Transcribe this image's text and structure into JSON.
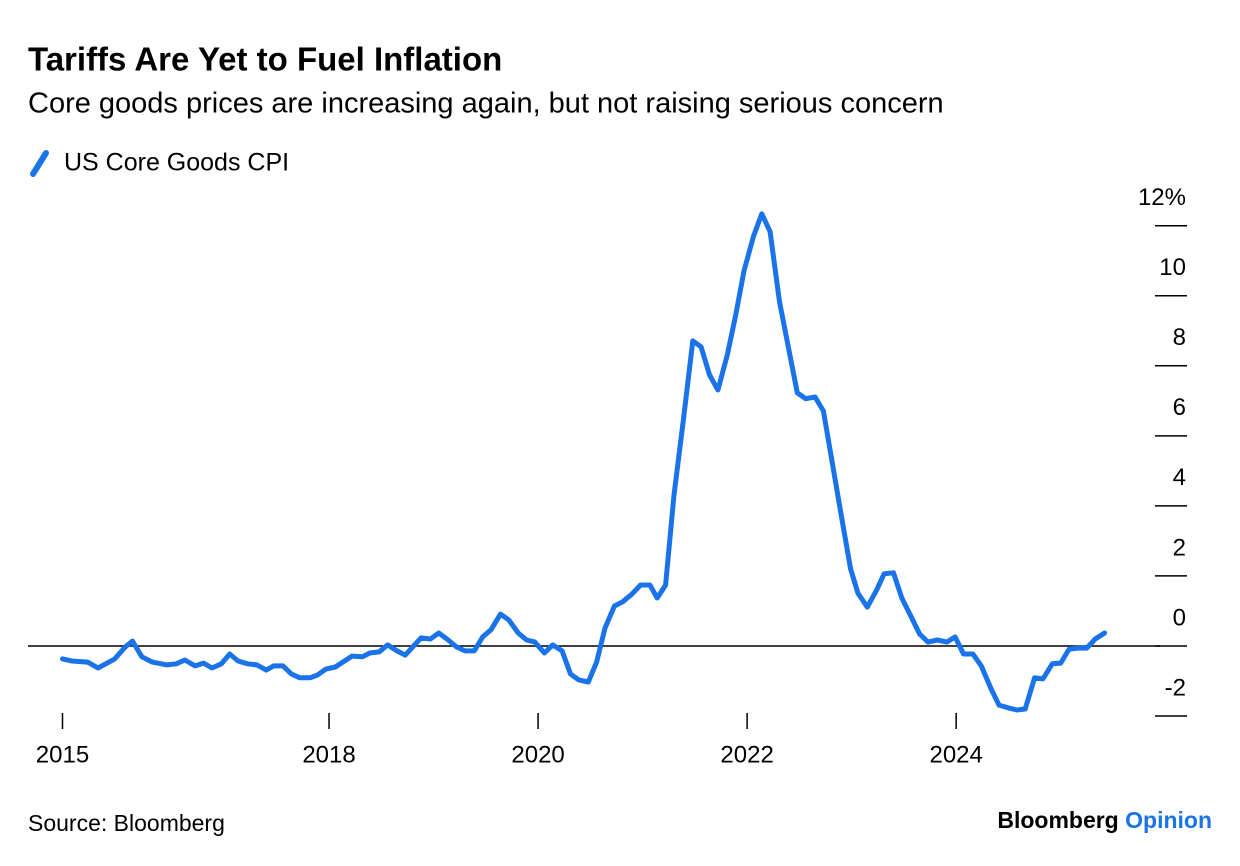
{
  "chart_data": {
    "type": "line",
    "title": "Tariffs Are Yet to Fuel Inflation",
    "subtitle": "Core goods prices are increasing again, but not raising serious concern",
    "source": "Source: Bloomberg",
    "brand": {
      "name": "Bloomberg",
      "suffix": "Opinion"
    },
    "x": [
      2015.45,
      2015.54,
      2015.69,
      2015.79,
      2015.95,
      2016.05,
      2016.12,
      2016.21,
      2016.31,
      2016.45,
      2016.54,
      2016.62,
      2016.72,
      2016.8,
      2016.88,
      2016.97,
      2017.05,
      2017.13,
      2017.22,
      2017.31,
      2017.4,
      2017.47,
      2017.56,
      2017.64,
      2017.72,
      2017.82,
      2017.89,
      2017.97,
      2018.06,
      2018.22,
      2018.32,
      2018.39,
      2018.48,
      2018.56,
      2018.65,
      2018.73,
      2018.88,
      2018.97,
      2019.05,
      2019.14,
      2019.22,
      2019.3,
      2019.39,
      2019.47,
      2019.55,
      2019.64,
      2019.72,
      2019.81,
      2019.89,
      2019.97,
      2020.06,
      2020.14,
      2020.23,
      2020.31,
      2020.39,
      2020.48,
      2020.56,
      2020.64,
      2020.73,
      2020.81,
      2020.9,
      2020.98,
      2021.07,
      2021.14,
      2021.22,
      2021.3,
      2021.39,
      2021.48,
      2021.56,
      2021.64,
      2021.72,
      2021.81,
      2021.89,
      2021.97,
      2022.06,
      2022.14,
      2022.22,
      2022.31,
      2022.39,
      2022.48,
      2022.56,
      2022.65,
      2022.73,
      2022.81,
      2022.9,
      2022.99,
      2023.06,
      2023.15,
      2023.24,
      2023.31,
      2023.4,
      2023.48,
      2023.57,
      2023.65,
      2023.73,
      2023.82,
      2023.91,
      2023.99,
      2024.07,
      2024.16,
      2024.24,
      2024.33,
      2024.41,
      2024.5,
      2024.58,
      2024.66,
      2024.75,
      2024.83,
      2024.92,
      2025.0,
      2025.08,
      2025.16,
      2025.25,
      2025.33,
      2025.42
    ],
    "series": [
      {
        "name": "US Core Goods CPI",
        "color": "#1a73e8",
        "values": [
          -0.37,
          -0.43,
          -0.46,
          -0.63,
          -0.37,
          -0.03,
          0.14,
          -0.31,
          -0.46,
          -0.54,
          -0.51,
          -0.4,
          -0.57,
          -0.49,
          -0.63,
          -0.51,
          -0.23,
          -0.43,
          -0.51,
          -0.54,
          -0.69,
          -0.57,
          -0.57,
          -0.8,
          -0.91,
          -0.91,
          -0.83,
          -0.66,
          -0.6,
          -0.29,
          -0.31,
          -0.2,
          -0.17,
          0.03,
          -0.14,
          -0.26,
          0.23,
          0.2,
          0.37,
          0.17,
          -0.03,
          -0.14,
          -0.14,
          0.26,
          0.46,
          0.91,
          0.74,
          0.37,
          0.17,
          0.11,
          -0.2,
          0.03,
          -0.14,
          -0.8,
          -0.97,
          -1.03,
          -0.46,
          0.51,
          1.14,
          1.26,
          1.49,
          1.74,
          1.74,
          1.37,
          1.74,
          4.31,
          6.46,
          8.71,
          8.54,
          7.74,
          7.31,
          8.31,
          9.43,
          10.71,
          11.69,
          12.34,
          11.83,
          9.83,
          8.6,
          7.23,
          7.06,
          7.11,
          6.71,
          5.31,
          3.74,
          2.2,
          1.51,
          1.11,
          1.6,
          2.06,
          2.09,
          1.37,
          0.83,
          0.34,
          0.11,
          0.17,
          0.11,
          0.26,
          -0.23,
          -0.23,
          -0.57,
          -1.2,
          -1.69,
          -1.77,
          -1.83,
          -1.8,
          -0.91,
          -0.94,
          -0.51,
          -0.49,
          -0.09,
          -0.06,
          -0.06,
          0.2,
          0.37
        ]
      }
    ],
    "xlim": [
      2015.12,
      2025.95
    ],
    "xticks": [
      {
        "value": 2015.45,
        "label": "2015"
      },
      2018,
      2020,
      2022,
      2024
    ],
    "ylim": [
      -2.2,
      12.8
    ],
    "yticks": [
      -2,
      0,
      2,
      4,
      6,
      8,
      {
        "value": 12,
        "label": "12%"
      },
      10
    ],
    "baseline": 0
  }
}
